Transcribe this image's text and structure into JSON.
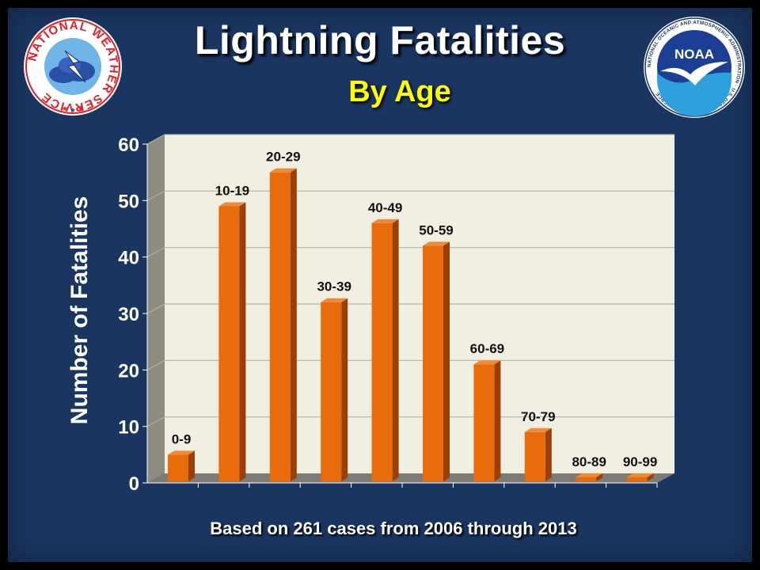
{
  "logos": {
    "left": {
      "ring_text": "NATIONAL WEATHER SERVICE",
      "icon": "nws-logo"
    },
    "right": {
      "center_text": "NOAA",
      "ring_text": "NATIONAL OCEANIC AND ATMOSPHERIC ADMINISTRATION · U.S. DEPARTMENT OF COMMERCE",
      "icon": "noaa-logo"
    }
  },
  "colors": {
    "background": "#1a3560",
    "bar_front": "#e86b0c",
    "bar_side": "#9a3f05",
    "plot_back": "#f1efe2",
    "title": "#ffffff",
    "subtitle": "#ffff00"
  },
  "chart_data": {
    "type": "bar",
    "title": "Lightning Fatalities",
    "subtitle": "By Age",
    "ylabel": "Number of Fatalities",
    "xlabel": "",
    "categories": [
      "0-9",
      "10-19",
      "20-29",
      "30-39",
      "40-49",
      "50-59",
      "60-69",
      "70-79",
      "80-89",
      "90-99"
    ],
    "values": [
      5,
      49,
      55,
      32,
      46,
      42,
      21,
      9,
      1,
      1
    ],
    "ylim": [
      0,
      60
    ],
    "yticks": [
      "0",
      "10",
      "20",
      "30",
      "40",
      "50",
      "60"
    ],
    "grid": true,
    "legend": "none",
    "footnote": "Based on 261 cases from 2006 through 2013"
  }
}
